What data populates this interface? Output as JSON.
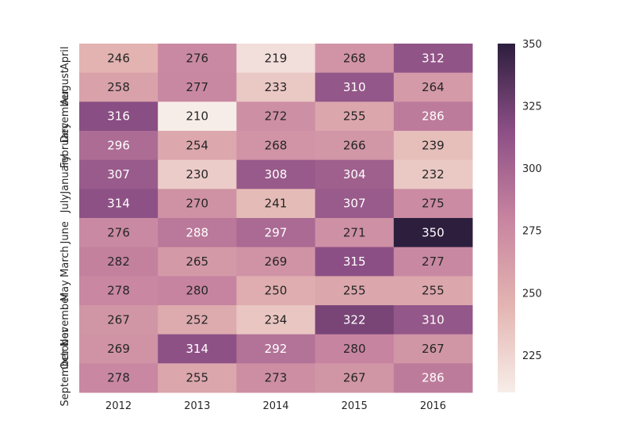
{
  "chart_data": {
    "type": "heatmap",
    "title": "",
    "xlabel": "",
    "ylabel": "",
    "x_categories": [
      "2012",
      "2013",
      "2014",
      "2015",
      "2016"
    ],
    "y_categories": [
      "April",
      "August",
      "December",
      "February",
      "January",
      "July",
      "June",
      "March",
      "May",
      "November",
      "October",
      "September"
    ],
    "values": [
      [
        246,
        276,
        219,
        268,
        312
      ],
      [
        258,
        277,
        233,
        310,
        264
      ],
      [
        316,
        210,
        272,
        255,
        286
      ],
      [
        296,
        254,
        268,
        266,
        239
      ],
      [
        307,
        230,
        308,
        304,
        232
      ],
      [
        314,
        270,
        241,
        307,
        275
      ],
      [
        276,
        288,
        297,
        271,
        350
      ],
      [
        282,
        265,
        269,
        315,
        277
      ],
      [
        278,
        280,
        250,
        255,
        255
      ],
      [
        267,
        252,
        234,
        322,
        310
      ],
      [
        269,
        314,
        292,
        280,
        267
      ],
      [
        278,
        255,
        273,
        267,
        286
      ]
    ],
    "value_range": [
      210,
      350
    ],
    "colorbar": {
      "ticks": [
        "225",
        "250",
        "275",
        "300",
        "325",
        "350"
      ],
      "tick_values": [
        225,
        250,
        275,
        300,
        325,
        350
      ],
      "placement": "right"
    },
    "colormap": {
      "low": "#f7ede8",
      "mid_low": "#e3b4b1",
      "mid": "#c784a0",
      "mid_high": "#8c4f85",
      "high": "#2d1e3e"
    },
    "annotations": "cell values shown"
  }
}
